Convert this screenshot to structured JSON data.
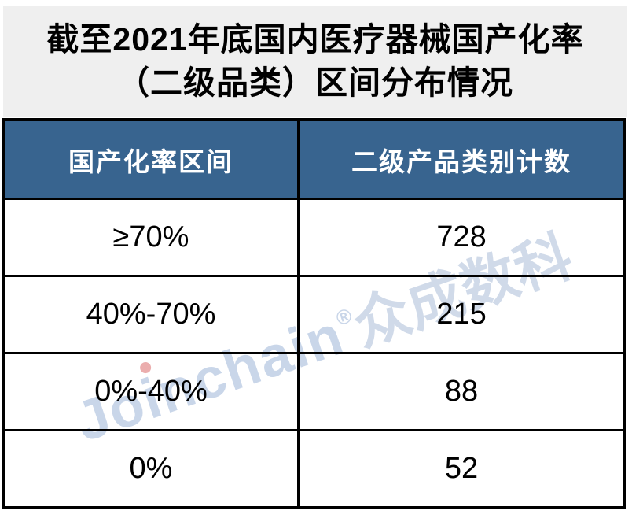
{
  "title": {
    "line1": "截至2021年底国内医疗器械国产化率",
    "line2": "（二级品类）区间分布情况",
    "bg_color": "#efefef",
    "text_color": "#000000"
  },
  "table": {
    "header_bg_color": "#38648f",
    "header_text_color": "#ffffff",
    "border_color": "#000000",
    "columns": {
      "range": "国产化率区间",
      "count": "二级产品类别计数"
    },
    "rows": [
      {
        "range": "≥70%",
        "count": "728"
      },
      {
        "range": "40%-70%",
        "count": "215"
      },
      {
        "range": "0%-40%",
        "count": "88"
      },
      {
        "range": "0%",
        "count": "52"
      }
    ]
  },
  "watermark": {
    "latin": "Joinchain",
    "reg": "®",
    "cjk": "众成数科",
    "color": "#c9d6e9"
  },
  "chart_data": {
    "type": "table",
    "title": "截至2021年底国内医疗器械国产化率（二级品类）区间分布情况",
    "columns": [
      "国产化率区间",
      "二级产品类别计数"
    ],
    "categories": [
      "≥70%",
      "40%-70%",
      "0%-40%",
      "0%"
    ],
    "values": [
      728,
      215,
      88,
      52
    ]
  }
}
